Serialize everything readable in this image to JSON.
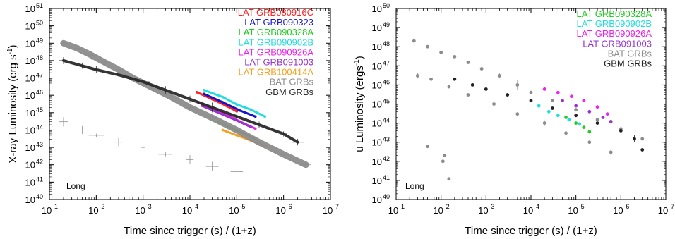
{
  "chart_data": [
    {
      "type": "scatter",
      "xlabel": "Time since trigger (s) / (1+z)",
      "ylabel": "X-ray Luminosity (erg s",
      "ylabel_sup": "-1",
      "ylabel_close": ")",
      "xscale": "log",
      "yscale": "log",
      "xlim": [
        10,
        10000000
      ],
      "ylim": [
        1e+40,
        1e+51
      ],
      "x_ticks": [
        "10",
        "10",
        "10",
        "10",
        "10",
        "10",
        "10"
      ],
      "x_tick_exps": [
        "1",
        "2",
        "3",
        "4",
        "5",
        "6",
        "7"
      ],
      "y_ticks": [
        "10",
        "10",
        "10",
        "10",
        "10",
        "10",
        "10",
        "10",
        "10",
        "10",
        "10",
        "10"
      ],
      "y_tick_exps": [
        "40",
        "41",
        "42",
        "43",
        "44",
        "45",
        "46",
        "47",
        "48",
        "49",
        "50",
        "51"
      ],
      "annotation": "Long",
      "legend_position": "top-right",
      "series": [
        {
          "name": "LAT GRB080916C",
          "color": "#ff2020",
          "points": [
            [
              14000,
              1.5e+46
            ],
            [
              30000,
              6e+45
            ],
            [
              60000,
              2.5e+45
            ],
            [
              100000,
              1.2e+45
            ]
          ]
        },
        {
          "name": "LAT GRB090323",
          "color": "#1515c8",
          "points": [
            [
              20000,
              1.2e+46
            ],
            [
              50000,
              4e+45
            ],
            [
              120000,
              1.3e+45
            ],
            [
              250000,
              6e+44
            ]
          ]
        },
        {
          "name": "LAT GRB090328A",
          "color": "#22cc22",
          "points": [
            [
              40000,
              3e+44
            ],
            [
              80000,
              1.2e+44
            ],
            [
              150000,
              6e+43
            ],
            [
              250000,
              3e+43
            ]
          ]
        },
        {
          "name": "LAT GRB090902B",
          "color": "#22dddd",
          "points": [
            [
              20000,
              2e+46
            ],
            [
              50000,
              8e+45
            ],
            [
              100000,
              3e+45
            ],
            [
              200000,
              1.5e+45
            ],
            [
              400000,
              6e+44
            ]
          ]
        },
        {
          "name": "LAT GRB090926A",
          "color": "#ee22ee",
          "points": [
            [
              15000,
              4e+45
            ],
            [
              30000,
              1.8e+45
            ],
            [
              60000,
              8e+44
            ],
            [
              120000,
              3e+44
            ],
            [
              250000,
              1.2e+44
            ]
          ]
        },
        {
          "name": "LAT GRB091003",
          "color": "#9933cc",
          "points": [
            [
              18000,
              2.5e+45
            ],
            [
              40000,
              1e+45
            ],
            [
              90000,
              4e+44
            ],
            [
              200000,
              1.5e+44
            ]
          ]
        },
        {
          "name": "LAT GRB100414A",
          "color": "#f5a020",
          "points": [
            [
              50000,
              1e+44
            ],
            [
              100000,
              5e+43
            ],
            [
              200000,
              2.5e+43
            ],
            [
              400000,
              1.2e+43
            ]
          ]
        },
        {
          "name": "BAT GRBs",
          "color": "#8c8c8c",
          "points": [
            [
              20,
              1e+49
            ],
            [
              40,
              5e+48
            ],
            [
              80,
              2e+48
            ],
            [
              150,
              8e+47
            ],
            [
              300,
              3e+47
            ],
            [
              600,
              1e+47
            ],
            [
              1500,
              3e+46
            ],
            [
              4000,
              8e+45
            ],
            [
              10000,
              2e+45
            ],
            [
              30000,
              5e+44
            ],
            [
              100000,
              1e+44
            ],
            [
              300000,
              2e+43
            ],
            [
              1000000,
              4e+42
            ],
            [
              3000000,
              1e+42
            ],
            [
              20,
              3e+44
            ],
            [
              50,
              1e+44
            ],
            [
              100,
              5e+43
            ],
            [
              300,
              2e+43
            ],
            [
              1000,
              1e+43
            ],
            [
              3000,
              4e+42
            ],
            [
              10000,
              2e+42
            ],
            [
              30000,
              8e+41
            ],
            [
              100000,
              4e+41
            ]
          ]
        },
        {
          "name": "GBM GRBs",
          "color": "#2a2a2a",
          "points": [
            [
              20,
              1e+48
            ],
            [
              50,
              5e+47
            ],
            [
              100,
              3e+47
            ],
            [
              300,
              1.5e+47
            ],
            [
              1000,
              6e+46
            ],
            [
              3000,
              2e+46
            ],
            [
              10000,
              6e+45
            ],
            [
              30000,
              2e+45
            ],
            [
              100000,
              6e+44
            ],
            [
              300000,
              2e+44
            ],
            [
              1000000,
              6e+43
            ],
            [
              2000000,
              2e+43
            ]
          ]
        }
      ]
    },
    {
      "type": "scatter",
      "xlabel": "Time since trigger (s) / (1+z)",
      "ylabel": "u Luminosity (ergs",
      "ylabel_sup": "-1",
      "ylabel_close": ")",
      "xscale": "log",
      "yscale": "log",
      "xlim": [
        10,
        10000000
      ],
      "ylim": [
        1e+40,
        1e+50
      ],
      "x_ticks": [
        "10",
        "10",
        "10",
        "10",
        "10",
        "10",
        "10"
      ],
      "x_tick_exps": [
        "1",
        "2",
        "3",
        "4",
        "5",
        "6",
        "7"
      ],
      "y_ticks": [
        "10",
        "10",
        "10",
        "10",
        "10",
        "10",
        "10",
        "10",
        "10",
        "10",
        "10"
      ],
      "y_tick_exps": [
        "40",
        "41",
        "42",
        "43",
        "44",
        "45",
        "46",
        "47",
        "48",
        "49",
        "50"
      ],
      "annotation": "Long",
      "legend_position": "top-right",
      "series": [
        {
          "name": "LAT GRB090328A",
          "color": "#22cc22",
          "points": [
            [
              60000,
              2e+44
            ],
            [
              100000,
              1e+44
            ],
            [
              150000,
              6e+43
            ],
            [
              200000,
              3.5e+43
            ]
          ]
        },
        {
          "name": "LAT GRB090902B",
          "color": "#22dddd",
          "points": [
            [
              15000,
              8e+44
            ],
            [
              25000,
              4e+44
            ],
            [
              40000,
              2.5e+44
            ],
            [
              70000,
              1.5e+44
            ],
            [
              120000,
              9e+43
            ]
          ]
        },
        {
          "name": "LAT GRB090926A",
          "color": "#ee22ee",
          "points": [
            [
              20000,
              6e+45
            ],
            [
              40000,
              4e+45
            ],
            [
              80000,
              2.5e+45
            ],
            [
              150000,
              1.5e+45
            ],
            [
              300000,
              7e+44
            ],
            [
              500000,
              3e+44
            ]
          ]
        },
        {
          "name": "LAT GRB091003",
          "color": "#9933cc",
          "points": [
            [
              50000,
              1.5e+45
            ],
            [
              100000,
              8e+44
            ],
            [
              200000,
              4e+44
            ],
            [
              400000,
              2e+44
            ],
            [
              600000,
              1.2e+44
            ]
          ]
        },
        {
          "name": "BAT GRBs",
          "color": "#8c8c8c",
          "points": [
            [
              25,
              2e+48
            ],
            [
              50,
              1e+48
            ],
            [
              100,
              5e+47
            ],
            [
              200,
              3e+47
            ],
            [
              400,
              1.5e+47
            ],
            [
              800,
              7e+46
            ],
            [
              2000,
              3e+46
            ],
            [
              5000,
              1e+46
            ],
            [
              10000,
              4e+45
            ],
            [
              30000,
              1.5e+45
            ],
            [
              100000,
              5e+44
            ],
            [
              300000,
              1.5e+44
            ],
            [
              1000000,
              5e+43
            ],
            [
              3000000,
              1.5e+43
            ],
            [
              30,
              3e+46
            ],
            [
              60,
              2e+46
            ],
            [
              150,
              8e+45
            ],
            [
              400,
              3e+45
            ],
            [
              1500,
              1e+45
            ],
            [
              5000,
              3e+44
            ],
            [
              20000,
              1e+44
            ],
            [
              60000,
              3e+43
            ],
            [
              200000,
              1e+43
            ],
            [
              600000,
              3e+42
            ],
            [
              50,
              6e+42
            ],
            [
              120,
              2e+42
            ],
            [
              110,
              1e+42
            ],
            [
              150,
              1.2e+41
            ]
          ]
        },
        {
          "name": "GBM GRBs",
          "color": "#222222",
          "points": [
            [
              200,
              2e+46
            ],
            [
              500,
              1e+46
            ],
            [
              1000,
              6e+45
            ],
            [
              3000,
              3e+45
            ],
            [
              10000,
              1.5e+45
            ],
            [
              30000,
              6e+44
            ],
            [
              100000,
              2.5e+44
            ],
            [
              300000,
              1e+44
            ],
            [
              1000000,
              4e+43
            ],
            [
              2000000,
              1.5e+43
            ],
            [
              3000000,
              4e+42
            ]
          ]
        }
      ]
    }
  ]
}
